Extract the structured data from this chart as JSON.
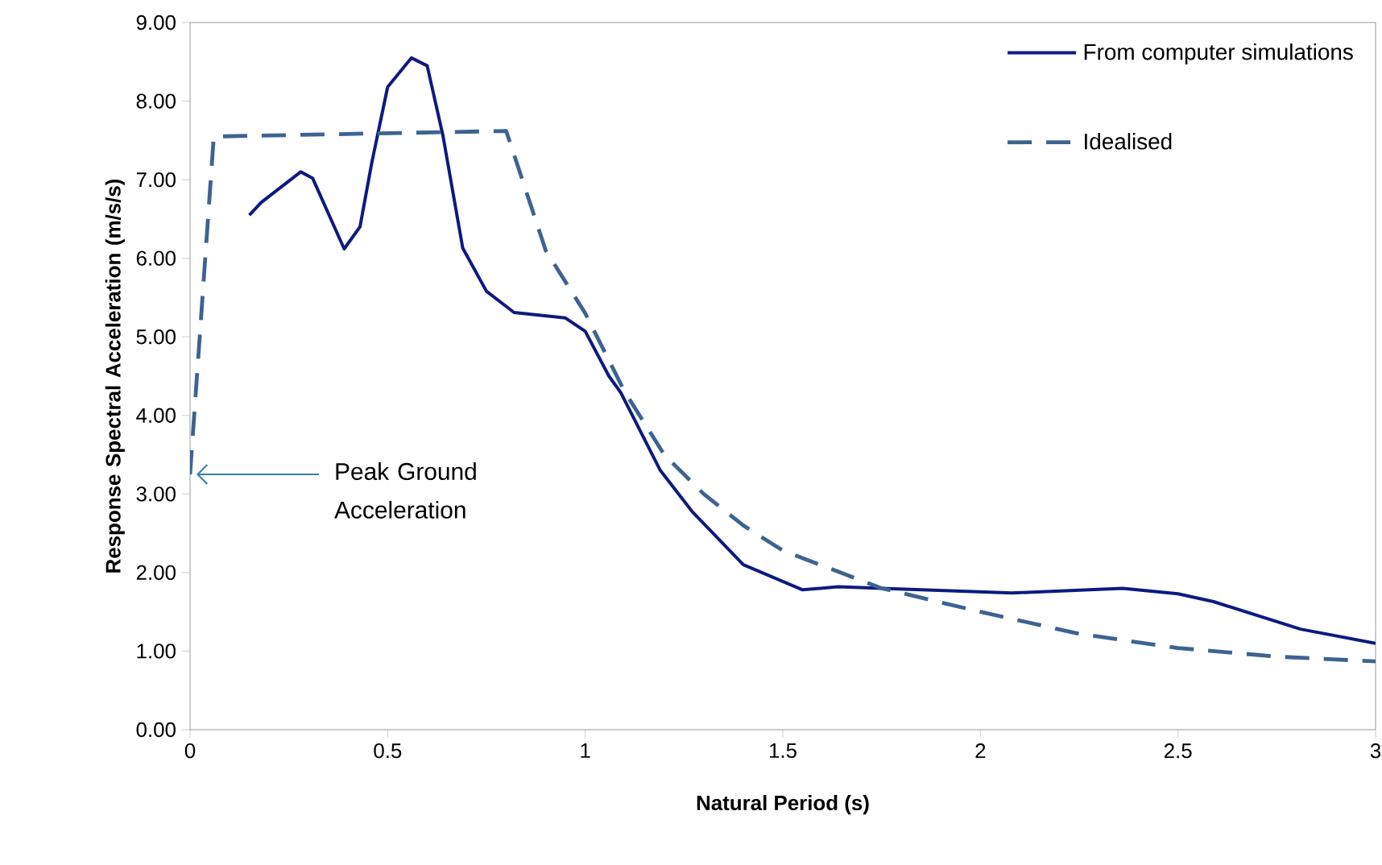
{
  "chart_data": {
    "type": "line",
    "xlabel": "Natural Period   (s)",
    "ylabel": "Response Spectral Acceleration (m/s/s)",
    "xlim": [
      0,
      3
    ],
    "xticks": [
      0,
      0.5,
      1,
      1.5,
      2,
      2.5,
      3
    ],
    "ylim": [
      0,
      9
    ],
    "yticks": [
      {
        "value": 0,
        "label": "0.00"
      },
      {
        "value": 1,
        "label": "1.00"
      },
      {
        "value": 2,
        "label": "2.00"
      },
      {
        "value": 3,
        "label": "3.00"
      },
      {
        "value": 4,
        "label": "4.00"
      },
      {
        "value": 5,
        "label": "5.00"
      },
      {
        "value": 6,
        "label": "6.00"
      },
      {
        "value": 7,
        "label": "7.00"
      },
      {
        "value": 8,
        "label": "8.00"
      },
      {
        "value": 9,
        "label": "9.00"
      }
    ],
    "legend": "top right",
    "series": [
      {
        "name": "From computer simulations",
        "color": "#0d1a80",
        "line_style": "solid",
        "x": [
          0.15,
          0.18,
          0.28,
          0.31,
          0.39,
          0.43,
          0.46,
          0.5,
          0.56,
          0.6,
          0.64,
          0.69,
          0.75,
          0.82,
          0.95,
          1.0,
          1.06,
          1.09,
          1.19,
          1.27,
          1.4,
          1.55,
          1.64,
          1.75,
          2.08,
          2.36,
          2.5,
          2.59,
          2.81,
          3.0
        ],
        "values": [
          6.55,
          6.71,
          7.1,
          7.02,
          6.12,
          6.4,
          7.22,
          8.18,
          8.55,
          8.45,
          7.56,
          6.13,
          5.58,
          5.31,
          5.24,
          5.07,
          4.5,
          4.29,
          3.3,
          2.78,
          2.1,
          1.78,
          1.82,
          1.8,
          1.74,
          1.8,
          1.73,
          1.63,
          1.28,
          1.1
        ]
      },
      {
        "name": "Idealised",
        "color": "#3d6391",
        "line_style": "dashed",
        "x": [
          0,
          0.06,
          0.8,
          0.9,
          1.0,
          1.1,
          1.2,
          1.3,
          1.4,
          1.5,
          1.75,
          2.0,
          2.25,
          2.5,
          2.75,
          3.0
        ],
        "values": [
          3.25,
          7.55,
          7.62,
          6.1,
          5.3,
          4.3,
          3.5,
          3.0,
          2.6,
          2.28,
          1.8,
          1.5,
          1.22,
          1.04,
          0.93,
          0.87
        ]
      }
    ],
    "annotations": [
      {
        "text": "Peak Ground Acceleration",
        "x": 0,
        "y": 3.25
      }
    ]
  }
}
